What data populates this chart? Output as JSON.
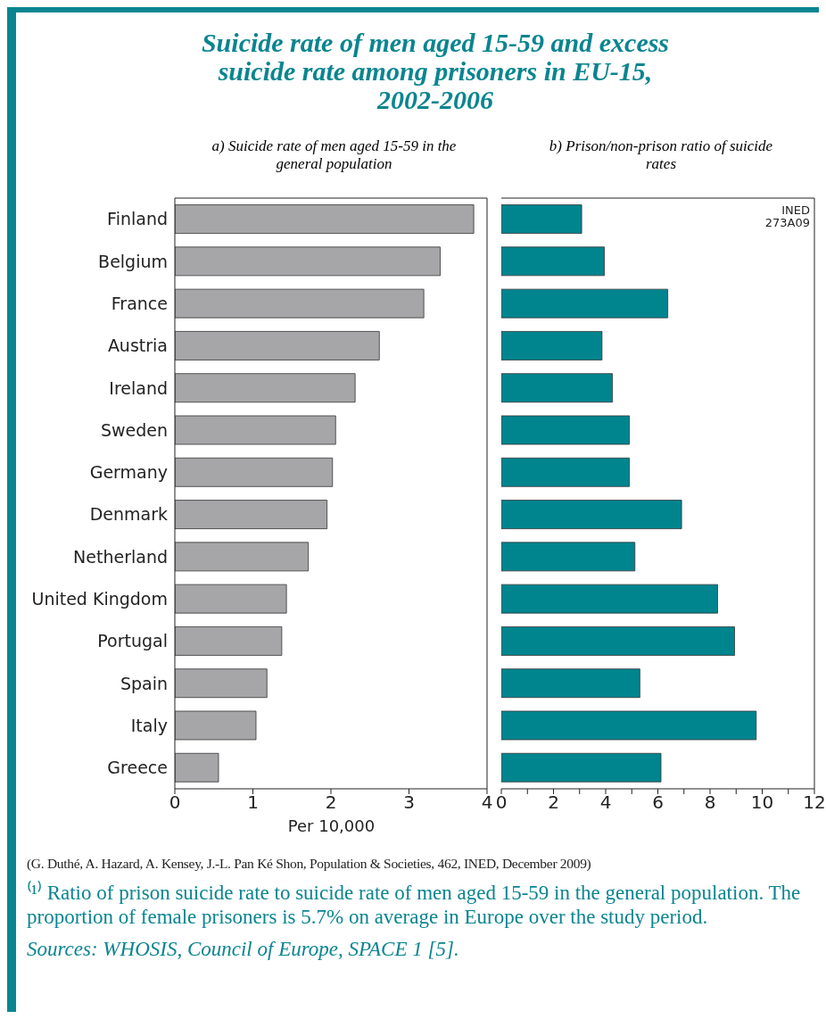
{
  "chart_data": [
    {
      "type": "bar",
      "orientation": "horizontal",
      "title": "Suicide rate of men aged 15-59 and excess suicide rate among prisoners in EU-15, 2002-2006",
      "subtitle": "a) Suicide rate of men aged 15-59 in the general population",
      "xlabel": "Per 10,000",
      "categories": [
        "Finland",
        "Belgium",
        "France",
        "Austria",
        "Ireland",
        "Sweden",
        "Germany",
        "Denmark",
        "Netherland",
        "United Kingdom",
        "Portugal",
        "Spain",
        "Italy",
        "Greece"
      ],
      "values": [
        3.83,
        3.4,
        3.19,
        2.62,
        2.31,
        2.06,
        2.02,
        1.95,
        1.71,
        1.43,
        1.37,
        1.18,
        1.04,
        0.56
      ],
      "color": "#a6a6a8",
      "xlim": [
        0,
        4
      ],
      "xticks": [
        0,
        1,
        2,
        3,
        4
      ],
      "annotations": [
        "(G. Duthé, A. Hazard, A. Kensey, J.-L. Pan Ké Shon, Population & Societies, 462, INED, December 2009)",
        "⁽¹⁾ Ratio of prison suicide rate to suicide rate of men aged 15-59 in the general population. The proportion of female prisoners is 5.7% on average in Europe over the study period.",
        "Sources: WHOSIS, Council of Europe, SPACE 1 [5]."
      ]
    },
    {
      "type": "bar",
      "orientation": "horizontal",
      "subtitle": "b) Prison/non-prison ratio of suicide rates",
      "categories": [
        null,
        null,
        null,
        null,
        null,
        null,
        null,
        null,
        null,
        null,
        null,
        null,
        null,
        null
      ],
      "values": [
        3.08,
        3.95,
        6.38,
        3.86,
        4.26,
        4.91,
        4.91,
        6.91,
        5.12,
        8.29,
        8.94,
        5.31,
        9.77,
        6.12
      ],
      "color": "#00858f",
      "xlim": [
        0,
        12
      ],
      "xticks": [
        0,
        {
          "value": 1,
          "label": null
        },
        2,
        {
          "value": 3,
          "label": null
        },
        4,
        {
          "value": 5,
          "label": null
        },
        6,
        {
          "value": 7,
          "label": null
        },
        8,
        {
          "value": 9,
          "label": null
        },
        10,
        {
          "value": 11,
          "label": null
        },
        12
      ],
      "tick_labels": "x",
      "annotations": [
        "INED 273A09"
      ]
    }
  ]
}
